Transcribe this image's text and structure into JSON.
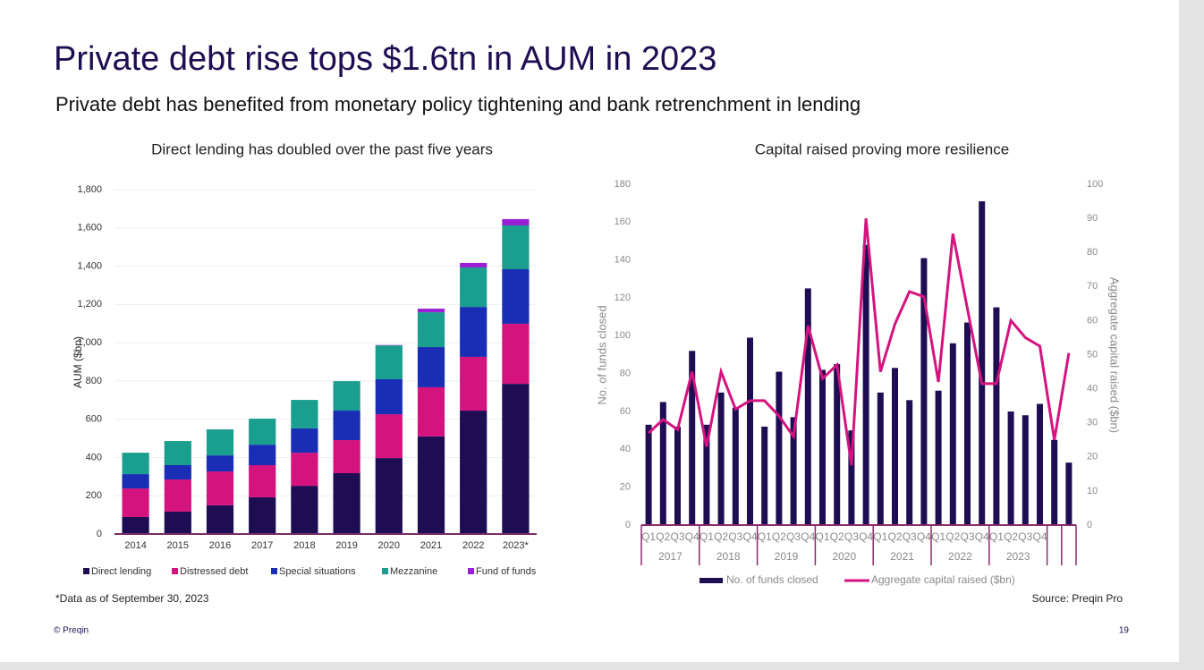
{
  "slide": {
    "title": "Private debt rise tops $1.6tn in AUM in 2023",
    "subtitle": "Private debt has benefited from monetary policy tightening and bank retrenchment in lending",
    "footnote": "*Data as of September 30, 2023",
    "source": "Source: Preqin Pro",
    "copyright": "© Preqin",
    "page": "19"
  },
  "chart_data": [
    {
      "type": "stacked_bar",
      "title": "Direct lending has doubled over the past five years",
      "ylabel": "AUM ($bn)",
      "categories": [
        "2014",
        "2015",
        "2016",
        "2017",
        "2018",
        "2019",
        "2020",
        "2021",
        "2022",
        "2023*"
      ],
      "series": [
        {
          "name": "Direct lending",
          "color": "#1e0d52",
          "values": [
            89,
            117,
            150,
            192,
            252,
            318,
            397,
            510,
            645,
            785
          ]
        },
        {
          "name": "Distressed debt",
          "color": "#d4137f",
          "values": [
            149,
            168,
            177,
            168,
            173,
            173,
            229,
            257,
            281,
            314
          ]
        },
        {
          "name": "Special situations",
          "color": "#1a2db5",
          "values": [
            75,
            75,
            84,
            107,
            127,
            154,
            183,
            210,
            261,
            285
          ]
        },
        {
          "name": "Mezzanine",
          "color": "#1a9e8f",
          "values": [
            112,
            126,
            136,
            136,
            149,
            154,
            177,
            182,
            206,
            229
          ]
        },
        {
          "name": "Fund of funds",
          "color": "#9b1fd6",
          "values": [
            0,
            0,
            0,
            0,
            0,
            0,
            2,
            19,
            24,
            33
          ]
        }
      ],
      "ylim": [
        0,
        1800
      ],
      "yticks": [
        0,
        200,
        400,
        600,
        800,
        {
          "value": 1000,
          "label": "1,000"
        },
        {
          "value": 1200,
          "label": "1,200"
        },
        {
          "value": 1400,
          "label": "1,400"
        },
        {
          "value": 1600,
          "label": "1,600"
        },
        {
          "value": 1800,
          "label": "1,800"
        }
      ],
      "grid": true,
      "legend": "bottom"
    },
    {
      "type": "bar_line",
      "title": "Capital raised proving more resilience",
      "ylabel": "No. of funds closed",
      "y2label": "Aggregate capital raised ($bn)",
      "categories": [
        "Q1",
        "Q2",
        "Q3",
        "Q4",
        "Q1",
        "Q2",
        "Q3",
        "Q4",
        "Q1",
        "Q2",
        "Q3",
        "Q4",
        "Q1",
        "Q2",
        "Q3",
        "Q4",
        "Q1",
        "Q2",
        "Q3",
        "Q4",
        "Q1",
        "Q2",
        "Q3",
        "Q4",
        "Q1",
        "Q2",
        "Q3",
        "Q4",
        null,
        null
      ],
      "groups": [
        "2017",
        "2018",
        "2019",
        "2020",
        "2021",
        "2022",
        "2023"
      ],
      "series": [
        {
          "name": "No. of funds closed",
          "color": "#1e0d52",
          "type": "bar",
          "values": [
            53,
            65,
            52,
            92,
            53,
            70,
            62,
            99,
            52,
            81,
            57,
            125,
            82,
            85,
            50,
            148,
            70,
            83,
            66,
            141,
            71,
            96,
            107,
            171,
            115,
            60,
            58,
            64,
            45,
            33
          ]
        },
        {
          "name": "Aggregate capital raised ($bn)",
          "color": "#d4137f",
          "type": "line",
          "axis": "y2",
          "values": [
            27,
            31,
            28,
            45,
            23,
            45,
            34,
            36.5,
            36.5,
            32,
            26,
            58.5,
            43,
            47,
            17.5,
            90,
            45,
            59,
            68.5,
            67,
            42,
            85.5,
            63.5,
            41.5,
            41.5,
            60,
            55,
            52.5,
            25,
            50.5
          ]
        }
      ],
      "ylim": [
        0,
        180
      ],
      "yticks": [
        0,
        20,
        40,
        60,
        80,
        100,
        120,
        140,
        160,
        180
      ],
      "y2lim": [
        0,
        100
      ],
      "y2ticks": [
        0,
        10,
        20,
        30,
        40,
        50,
        60,
        70,
        80,
        90,
        100
      ],
      "grid": false,
      "legend": "bottom"
    }
  ]
}
